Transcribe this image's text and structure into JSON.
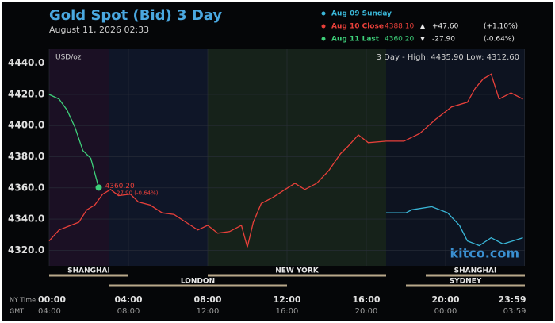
{
  "chart_data": {
    "type": "line",
    "title": "Gold Spot (Bid) 3 Day",
    "subtitle": "August 11, 2026 02:33",
    "unit_label": "USD/oz",
    "range_summary": "3 Day - High: 4435.90  Low: 4312.60",
    "watermark": "kitco.com",
    "row_labels": [
      "NY Time",
      "GMT"
    ],
    "xlim": [
      0,
      24
    ],
    "ylim": [
      4310,
      4449
    ],
    "grid": true,
    "yticks": [
      {
        "value": 4320,
        "label": "4320.0"
      },
      {
        "value": 4340,
        "label": "4340.0"
      },
      {
        "value": 4360,
        "label": "4360.0"
      },
      {
        "value": 4380,
        "label": "4380.0"
      },
      {
        "value": 4400,
        "label": "4400.0"
      },
      {
        "value": 4420,
        "label": "4420.0"
      },
      {
        "value": 4440,
        "label": "4440.0"
      }
    ],
    "xticks": [
      {
        "value": 0,
        "label": "00:00"
      },
      {
        "value": 4,
        "label": "04:00"
      },
      {
        "value": 8,
        "label": "08:00"
      },
      {
        "value": 12,
        "label": "12:00"
      },
      {
        "value": 16,
        "label": "16:00"
      },
      {
        "value": 20,
        "label": "20:00"
      },
      {
        "value": 23.98,
        "label": "23:59"
      }
    ],
    "xticks_gmt": [
      {
        "value": 0,
        "label": "04:00"
      },
      {
        "value": 4,
        "label": "08:00"
      },
      {
        "value": 8,
        "label": "12:00"
      },
      {
        "value": 12,
        "label": "16:00"
      },
      {
        "value": 16,
        "label": "20:00"
      },
      {
        "value": 20,
        "label": "00:00"
      },
      {
        "value": 23.98,
        "label": "03:59"
      }
    ],
    "sessions": [
      {
        "name": "SHANGHAI",
        "start": 0,
        "end": 4,
        "row": 0
      },
      {
        "name": "LONDON",
        "start": 3,
        "end": 12,
        "row": 1
      },
      {
        "name": "NEW YORK",
        "start": 8,
        "end": 17,
        "row": 0
      },
      {
        "name": "SHANGHAI",
        "start": 19,
        "end": 24,
        "row": 0
      },
      {
        "name": "SYDNEY",
        "start": 18,
        "end": 24,
        "row": 1
      }
    ],
    "series": [
      {
        "name": "Aug 09 Sunday",
        "color": "#3ab7d8",
        "x": [
          17,
          18,
          18.3,
          19.3,
          20.1,
          20.7,
          21.1,
          21.7,
          22.3,
          22.9,
          23.9
        ],
        "values": [
          4344,
          4344,
          4346,
          4348,
          4344,
          4336,
          4326,
          4323,
          4328,
          4324,
          4328
        ]
      },
      {
        "name": "Aug 10 Close",
        "color": "#e8403a",
        "last": "4388.10",
        "change": "+47.60",
        "change_pct": "(+1.10%)",
        "direction": "up",
        "x": [
          0,
          0.5,
          1.1,
          1.5,
          1.9,
          2.3,
          2.7,
          3.1,
          3.5,
          4.1,
          4.5,
          5.1,
          5.7,
          6.3,
          6.9,
          7.5,
          8,
          8.5,
          9.1,
          9.7,
          10,
          10.3,
          10.7,
          11.3,
          11.9,
          12.4,
          12.9,
          13.5,
          14.1,
          14.7,
          15.1,
          15.6,
          16.1,
          17,
          17.9,
          18.7,
          19.5,
          20.3,
          21.1,
          21.5,
          21.9,
          22.3,
          22.7,
          23.3,
          23.9
        ],
        "values": [
          4326,
          4333,
          4336,
          4338,
          4346,
          4349,
          4356,
          4359,
          4355,
          4356,
          4351,
          4349,
          4344,
          4343,
          4338,
          4333,
          4336,
          4331,
          4332,
          4336,
          4322,
          4338,
          4350,
          4354,
          4359,
          4363,
          4359,
          4363,
          4371,
          4382,
          4387,
          4394,
          4389,
          4390,
          4390,
          4395,
          4404,
          4412,
          4415,
          4424,
          4430,
          4433,
          4417,
          4421,
          4417
        ]
      },
      {
        "name": "Aug 11 Last",
        "color": "#3ed07a",
        "last": "4360.20",
        "change": "-27.90",
        "change_pct": "(-0.64%)",
        "direction": "down",
        "x": [
          0,
          0.5,
          0.9,
          1.3,
          1.7,
          2.1,
          2.5
        ],
        "values": [
          4420,
          4417,
          4410,
          4399,
          4384,
          4379,
          4360.2
        ]
      }
    ],
    "annotation": {
      "x": 2.5,
      "y": 4360.2,
      "label": "4360.20",
      "sublabel": "-27.90 (-0.64%)"
    }
  }
}
